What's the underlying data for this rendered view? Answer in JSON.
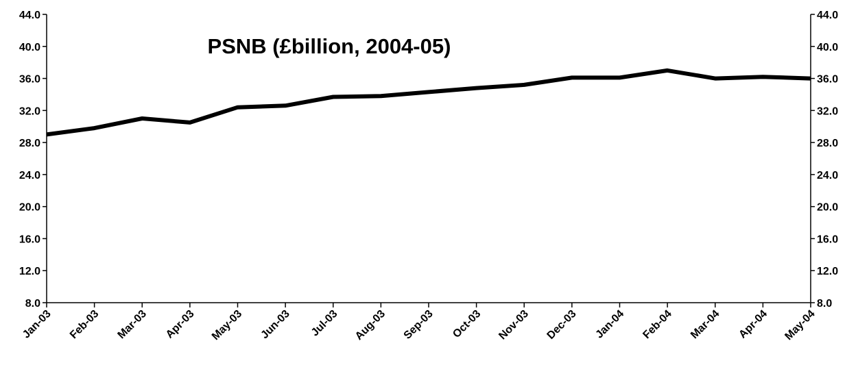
{
  "chart_data": {
    "type": "line",
    "title": "PSNB (£billion, 2004-05)",
    "xlabel": "",
    "ylabel": "",
    "categories": [
      "Jan-03",
      "Feb-03",
      "Mar-03",
      "Apr-03",
      "May-03",
      "Jun-03",
      "Jul-03",
      "Aug-03",
      "Sep-03",
      "Oct-03",
      "Nov-03",
      "Dec-03",
      "Jan-04",
      "Feb-04",
      "Mar-04",
      "Apr-04",
      "May-04"
    ],
    "series": [
      {
        "values": [
          29.0,
          29.8,
          31.0,
          30.5,
          32.4,
          32.6,
          33.7,
          33.8,
          34.3,
          34.8,
          35.2,
          36.1,
          36.1,
          37.0,
          36.0,
          36.2,
          36.0
        ]
      }
    ],
    "ylim": [
      8.0,
      44.0
    ],
    "yticks": [
      "8.0",
      "12.0",
      "16.0",
      "20.0",
      "24.0",
      "28.0",
      "32.0",
      "36.0",
      "40.0",
      "44.0"
    ],
    "axes": "left-and-right",
    "grid": false,
    "legend": "none",
    "line_color": "#000000"
  }
}
